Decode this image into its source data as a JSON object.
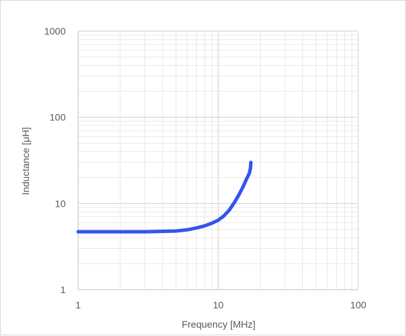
{
  "chart_data": {
    "type": "line",
    "title": "",
    "xlabel": "Frequency [MHz]",
    "ylabel": "Inductance  [μH]",
    "xscale": "log",
    "yscale": "log",
    "xlim": [
      1,
      100
    ],
    "ylim": [
      1,
      1000
    ],
    "x_tick_labels": [
      "1",
      "10",
      "100"
    ],
    "y_tick_labels": [
      "1000",
      "100",
      "10",
      "1"
    ],
    "grid": true,
    "legend": "none",
    "series": [
      {
        "color": "#3355ee",
        "x": [
          1,
          2,
          3,
          4,
          5,
          6,
          7,
          8,
          9,
          10,
          11,
          12,
          13,
          14,
          15,
          16,
          16.7,
          17,
          17.1
        ],
        "y": [
          4.7,
          4.7,
          4.7,
          4.75,
          4.8,
          4.95,
          5.2,
          5.5,
          5.9,
          6.4,
          7.2,
          8.4,
          10.2,
          12.5,
          15.5,
          19.5,
          22.5,
          26,
          30
        ]
      }
    ]
  }
}
